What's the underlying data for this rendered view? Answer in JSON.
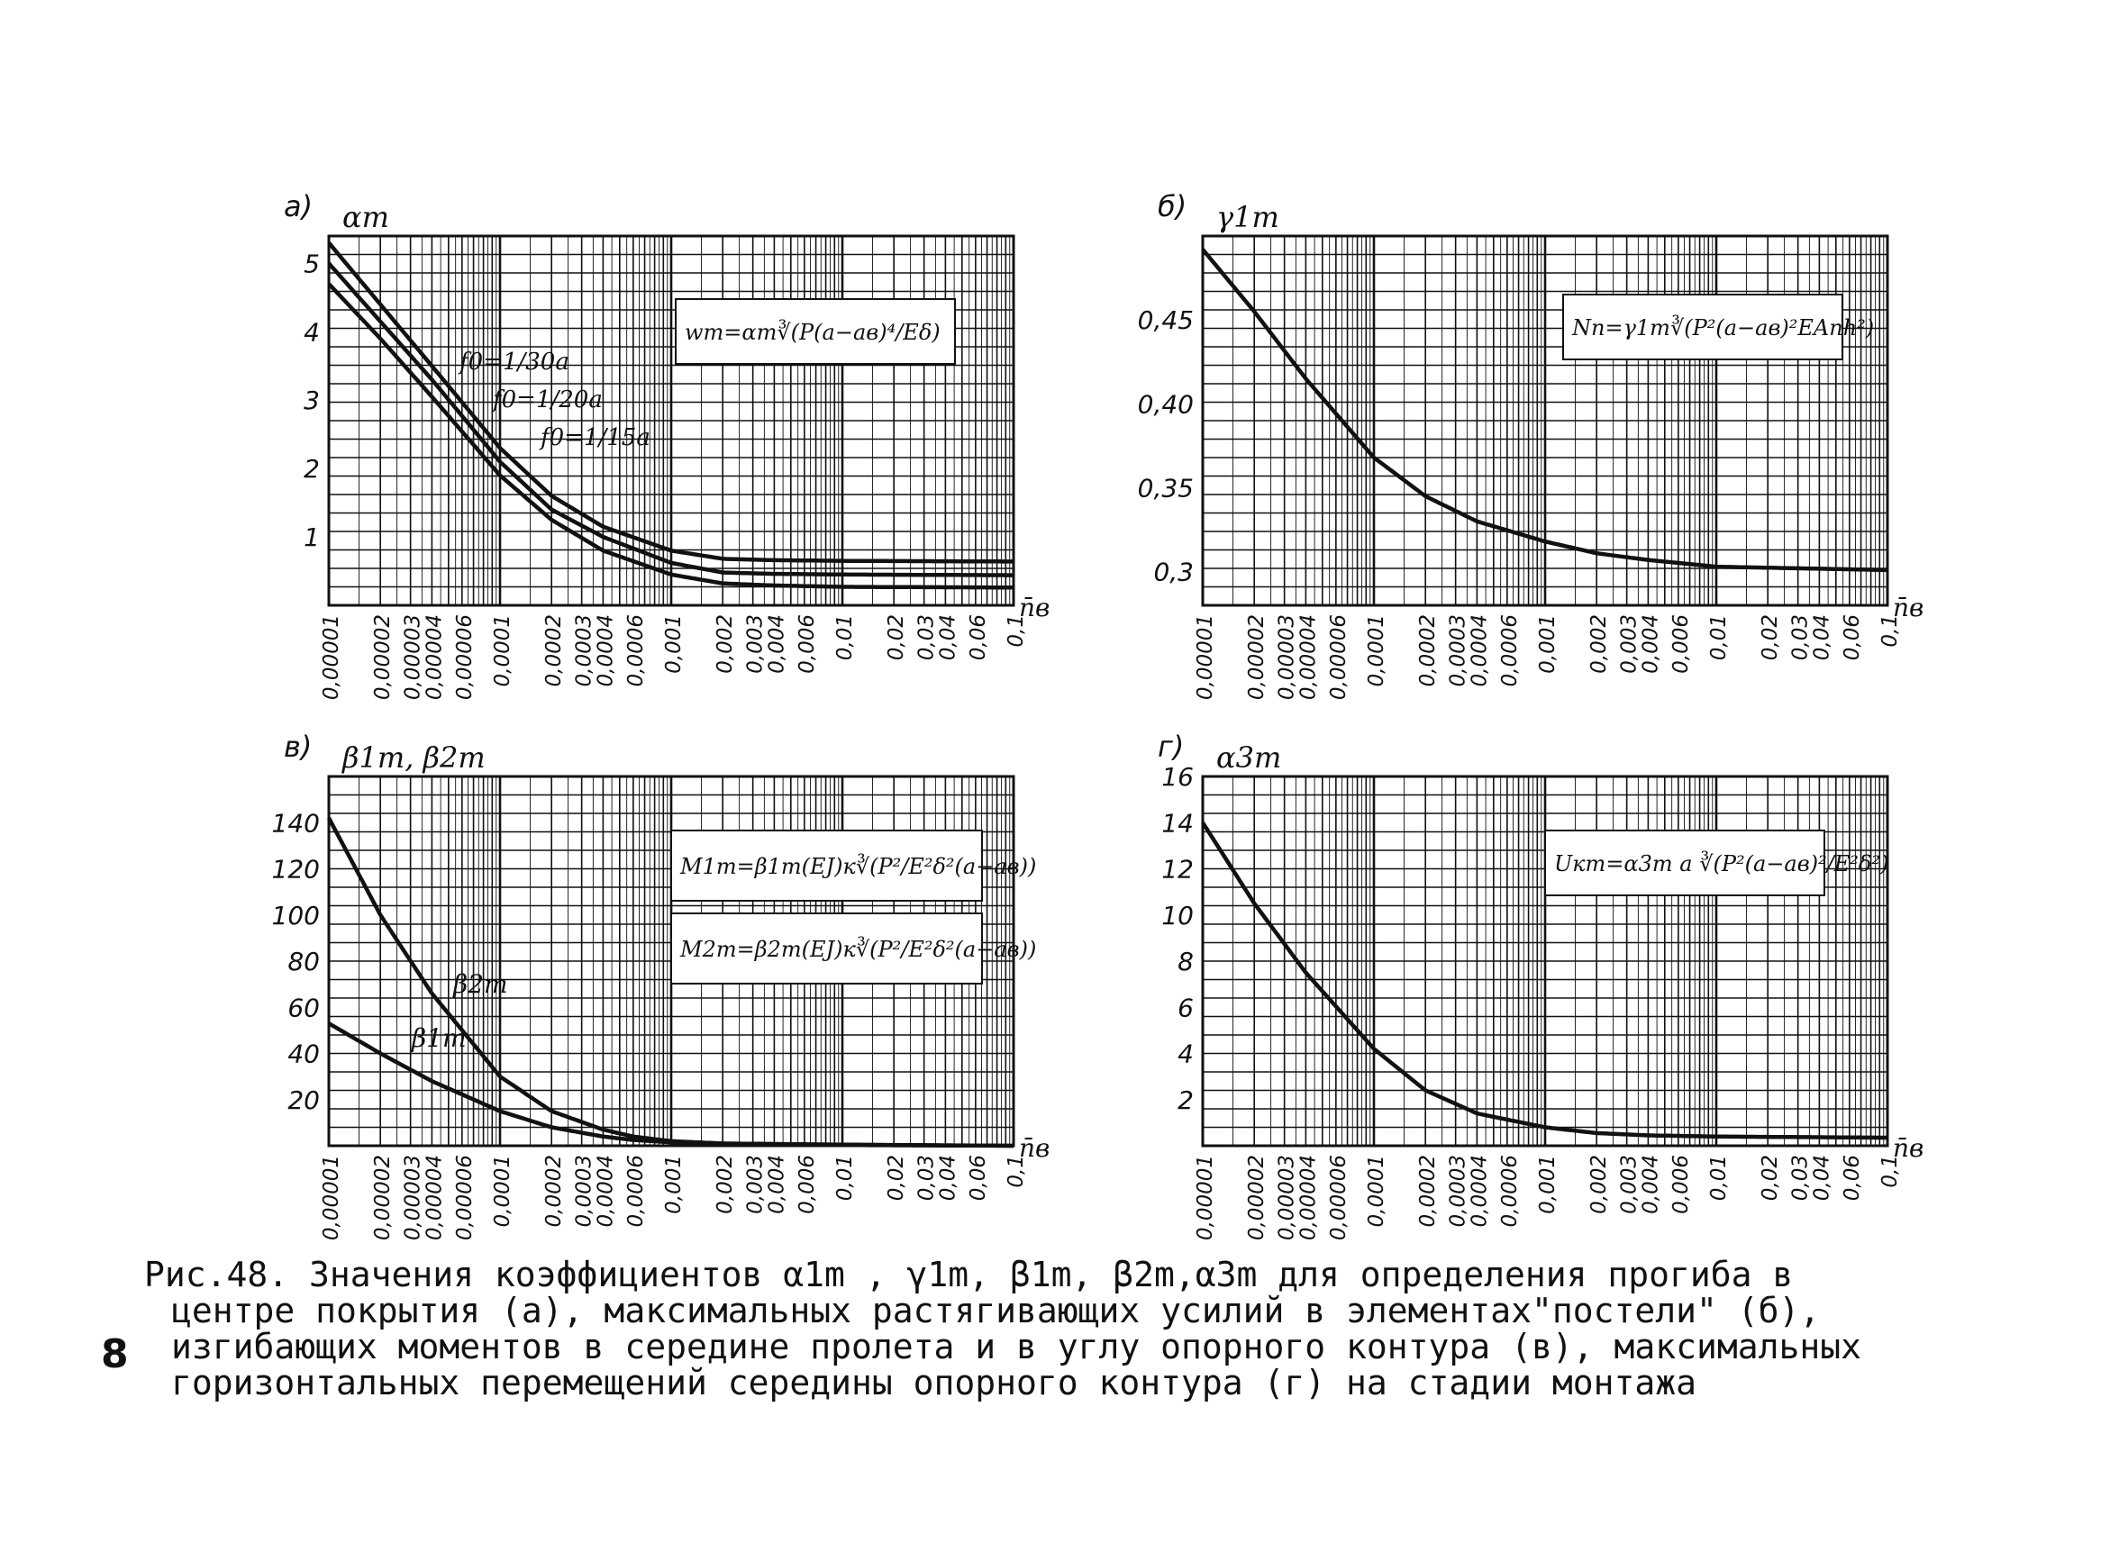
{
  "page_number": "8",
  "caption": {
    "lines": [
      "Рис.48. Значения коэффициентов α1m , γ1m, β1m, β2m,α3m для определения прогиба в",
      "центре покрытия (а), максимальных растягивающих усилий в элементах\"постели\" (б),",
      "изгибающих моментов в середине пролета и в углу опорного контура (в), максимальных",
      "горизонтальных перемещений середины опорного контура (г) на стадии монтажа"
    ]
  },
  "x_tick_labels": [
    "0,00001",
    "0,00002",
    "0,00003",
    "0,00004",
    "0,00006",
    "0,0001",
    "0,0002",
    "0,0003",
    "0,0004",
    "0,0006",
    "0,001",
    "0,002",
    "0,003",
    "0,004",
    "0,006",
    "0,01",
    "0,02",
    "0,03",
    "0,04",
    "0,06",
    "0,1"
  ],
  "chart_data": [
    {
      "type": "line",
      "panel_label": "а)",
      "ylabel": "αm",
      "xlabel": "n̄в",
      "x_scale": "log",
      "xlim": [
        1e-05,
        0.1
      ],
      "ylim": [
        0,
        5.4
      ],
      "y_ticks": [
        1,
        2,
        3,
        4,
        5
      ],
      "y_tick_labels": [
        "1",
        "2",
        "3",
        "4",
        "5"
      ],
      "grid": true,
      "formula": "wm=αm∛(P(a−aв)⁴/Eδ)",
      "series": [
        {
          "name": "f0=1/30a",
          "x": [
            1e-05,
            2e-05,
            4e-05,
            0.0001,
            0.0002,
            0.0004,
            0.001,
            0.002,
            0.004,
            0.01,
            0.1
          ],
          "y": [
            5.3,
            4.4,
            3.5,
            2.3,
            1.6,
            1.15,
            0.8,
            0.68,
            0.66,
            0.65,
            0.64
          ]
        },
        {
          "name": "f0=1/20a",
          "x": [
            1e-05,
            2e-05,
            4e-05,
            0.0001,
            0.0002,
            0.0004,
            0.001,
            0.002,
            0.004,
            0.01,
            0.1
          ],
          "y": [
            5.0,
            4.15,
            3.3,
            2.1,
            1.4,
            1.0,
            0.62,
            0.48,
            0.46,
            0.45,
            0.44
          ]
        },
        {
          "name": "f0=1/15a",
          "x": [
            1e-05,
            2e-05,
            4e-05,
            0.0001,
            0.0002,
            0.0004,
            0.001,
            0.002,
            0.004,
            0.01,
            0.1
          ],
          "y": [
            4.7,
            3.9,
            3.05,
            1.9,
            1.25,
            0.8,
            0.45,
            0.32,
            0.29,
            0.27,
            0.26
          ]
        }
      ]
    },
    {
      "type": "line",
      "panel_label": "б)",
      "ylabel": "γ1m",
      "xlabel": "n̄в",
      "x_scale": "log",
      "xlim": [
        1e-05,
        0.1
      ],
      "ylim": [
        0.28,
        0.5
      ],
      "y_ticks": [
        0.3,
        0.35,
        0.4,
        0.45
      ],
      "y_tick_labels": [
        "0,3",
        "0,35",
        "0,40",
        "0,45"
      ],
      "grid": true,
      "formula": "Nn=γ1m∛(P²(a−aв)²EAnh²)",
      "series": [
        {
          "name": "γ1m",
          "x": [
            1e-05,
            2e-05,
            4e-05,
            0.0001,
            0.0002,
            0.0004,
            0.001,
            0.002,
            0.004,
            0.01,
            0.1
          ],
          "y": [
            0.492,
            0.455,
            0.415,
            0.368,
            0.345,
            0.33,
            0.318,
            0.311,
            0.307,
            0.303,
            0.301
          ]
        }
      ]
    },
    {
      "type": "line",
      "panel_label": "в)",
      "ylabel": "β1m, β2m",
      "xlabel": "n̄в",
      "x_scale": "log",
      "xlim": [
        1e-05,
        0.1
      ],
      "ylim": [
        0,
        160
      ],
      "y_ticks": [
        20,
        40,
        60,
        80,
        100,
        120,
        140
      ],
      "y_tick_labels": [
        "20",
        "40",
        "60",
        "80",
        "100",
        "120",
        "140"
      ],
      "grid": true,
      "formula_1": "M1m=β1m(EJ)к∛(P²/E²δ²(a−aв))",
      "formula_2": "M2m=β2m(EJ)к∛(P²/E²δ²(a−aв))",
      "series": [
        {
          "name": "β2m",
          "x": [
            1e-05,
            2e-05,
            4e-05,
            0.0001,
            0.0002,
            0.0004,
            0.0006,
            0.001,
            0.002,
            0.01,
            0.1
          ],
          "y": [
            142,
            100,
            66,
            30,
            15,
            7,
            4,
            2,
            1,
            0.5,
            0
          ]
        },
        {
          "name": "β1m",
          "x": [
            1e-05,
            2e-05,
            4e-05,
            0.0001,
            0.0002,
            0.0004,
            0.0006,
            0.001,
            0.002,
            0.01,
            0.1
          ],
          "y": [
            53,
            40,
            28,
            15,
            8,
            4,
            2.5,
            1.5,
            0.8,
            0.3,
            0
          ]
        }
      ]
    },
    {
      "type": "line",
      "panel_label": "г)",
      "ylabel": "α3m",
      "xlabel": "n̄в",
      "x_scale": "log",
      "xlim": [
        1e-05,
        0.1
      ],
      "ylim": [
        0,
        16
      ],
      "y_ticks": [
        2,
        4,
        6,
        8,
        10,
        12,
        14,
        16
      ],
      "y_tick_labels": [
        "2",
        "4",
        "6",
        "8",
        "10",
        "12",
        "14",
        "16"
      ],
      "grid": true,
      "formula": "Uкm=α3m a ∛(P²(a−aв)²/E²δ²)",
      "series": [
        {
          "name": "α3m",
          "x": [
            1e-05,
            2e-05,
            4e-05,
            0.0001,
            0.0002,
            0.0004,
            0.001,
            0.002,
            0.004,
            0.01,
            0.1
          ],
          "y": [
            14,
            10.5,
            7.5,
            4.2,
            2.4,
            1.4,
            0.8,
            0.55,
            0.45,
            0.4,
            0.35
          ]
        }
      ]
    }
  ]
}
